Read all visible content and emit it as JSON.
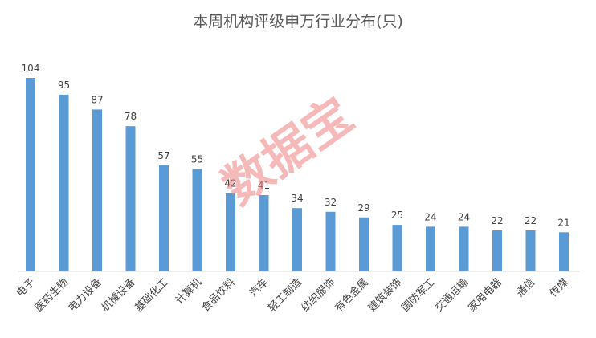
{
  "chart_data": {
    "type": "bar",
    "title": "本周机构评级申万行业分布(只)",
    "categories": [
      "电子",
      "医药生物",
      "电力设备",
      "机械设备",
      "基础化工",
      "计算机",
      "食品饮料",
      "汽车",
      "轻工制造",
      "纺织服饰",
      "有色金属",
      "建筑装饰",
      "国防军工",
      "交通运输",
      "家用电器",
      "通信",
      "传媒"
    ],
    "values": [
      104,
      95,
      87,
      78,
      57,
      55,
      42,
      41,
      34,
      32,
      29,
      25,
      24,
      24,
      22,
      22,
      21
    ],
    "xlabel": "",
    "ylabel": "",
    "ylim": [
      0,
      104
    ],
    "grid": false,
    "legend": "none",
    "bar_color": "#5b9bd5"
  },
  "watermark": {
    "text": "数据宝",
    "color": "#f08080"
  }
}
